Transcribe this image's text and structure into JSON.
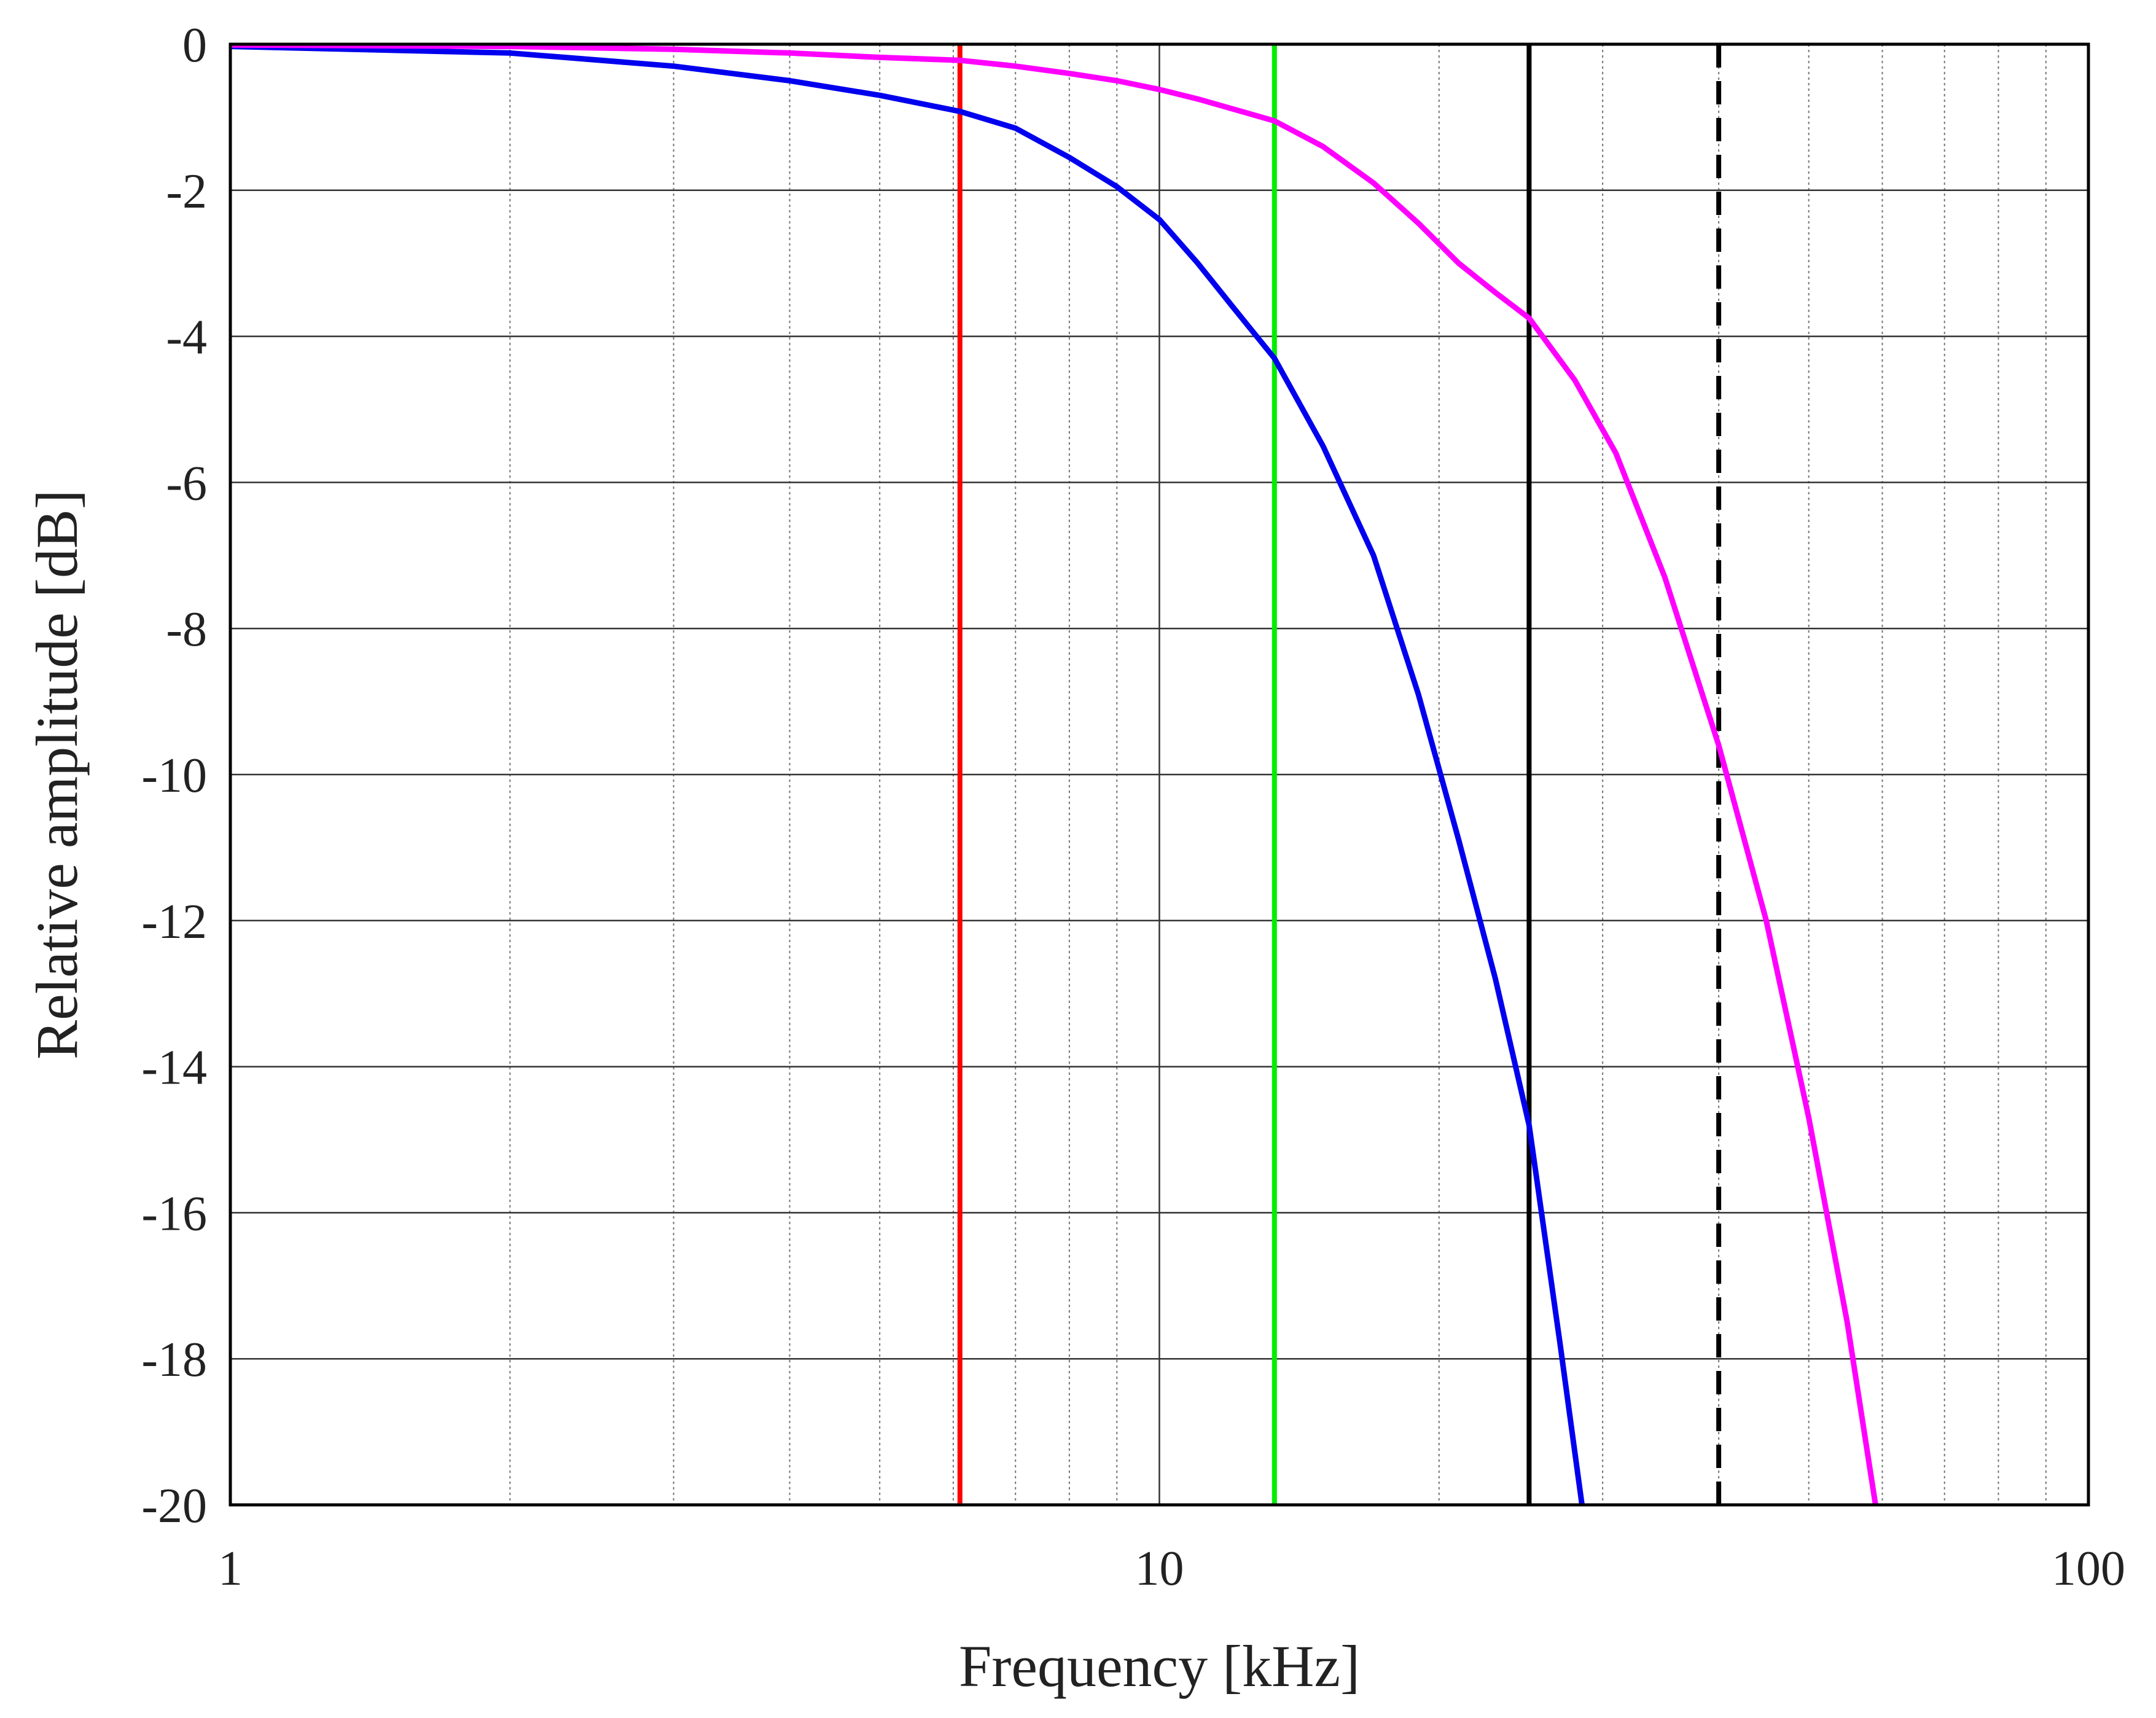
{
  "chart_data": {
    "type": "line",
    "title": "",
    "xlabel": "Frequency [kHz]",
    "ylabel": "Relative amplitude [dB]",
    "xscale": "log",
    "xlim": [
      1,
      100
    ],
    "ylim": [
      -20,
      0
    ],
    "grid": true,
    "legend": "none",
    "x_ticks": [
      {
        "value": 1,
        "label": "1"
      },
      {
        "value": 10,
        "label": "10"
      },
      {
        "value": 100,
        "label": "100"
      }
    ],
    "y_ticks": [
      {
        "value": 0,
        "label": "0"
      },
      {
        "value": -2,
        "label": "-2"
      },
      {
        "value": -4,
        "label": "-4"
      },
      {
        "value": -6,
        "label": "-6"
      },
      {
        "value": -8,
        "label": "-8"
      },
      {
        "value": -10,
        "label": "-10"
      },
      {
        "value": -12,
        "label": "-12"
      },
      {
        "value": -14,
        "label": "-14"
      },
      {
        "value": -16,
        "label": "-16"
      },
      {
        "value": -18,
        "label": "-18"
      },
      {
        "value": -20,
        "label": "-20"
      }
    ],
    "series": [
      {
        "name": "blue curve",
        "color": "#0000ee",
        "x": [
          1,
          2,
          3,
          4,
          5,
          6.1,
          7,
          8,
          9,
          10,
          11,
          12,
          13.3,
          15,
          17,
          19,
          21,
          23,
          25,
          27,
          28.5
        ],
        "y": [
          -0.03,
          -0.12,
          -0.3,
          -0.5,
          -0.7,
          -0.92,
          -1.15,
          -1.55,
          -1.95,
          -2.4,
          -3.0,
          -3.6,
          -4.3,
          -5.5,
          -7.0,
          -8.9,
          -10.9,
          -12.8,
          -14.8,
          -17.8,
          -20
        ]
      },
      {
        "name": "magenta curve",
        "color": "#ff00ff",
        "x": [
          1,
          2,
          3,
          4,
          5,
          6.1,
          7,
          8,
          9,
          10,
          11,
          13.3,
          15,
          17,
          19,
          21,
          23,
          25,
          28,
          31,
          35,
          40,
          45,
          50,
          55,
          59
        ],
        "y": [
          -0.01,
          -0.03,
          -0.07,
          -0.12,
          -0.18,
          -0.22,
          -0.3,
          -0.4,
          -0.5,
          -0.62,
          -0.75,
          -1.05,
          -1.4,
          -1.9,
          -2.45,
          -3.0,
          -3.4,
          -3.75,
          -4.6,
          -5.6,
          -7.3,
          -9.6,
          -12.0,
          -14.7,
          -17.5,
          -20
        ]
      }
    ],
    "vertical_lines": [
      {
        "name": "red marker",
        "x": 6.1,
        "color": "#ff0000",
        "style": "solid"
      },
      {
        "name": "green marker",
        "x": 13.3,
        "color": "#00ee00",
        "style": "solid"
      },
      {
        "name": "black marker",
        "x": 25,
        "color": "#000000",
        "style": "solid"
      },
      {
        "name": "black dashed marker",
        "x": 40,
        "color": "#000000",
        "style": "dashed"
      }
    ]
  }
}
